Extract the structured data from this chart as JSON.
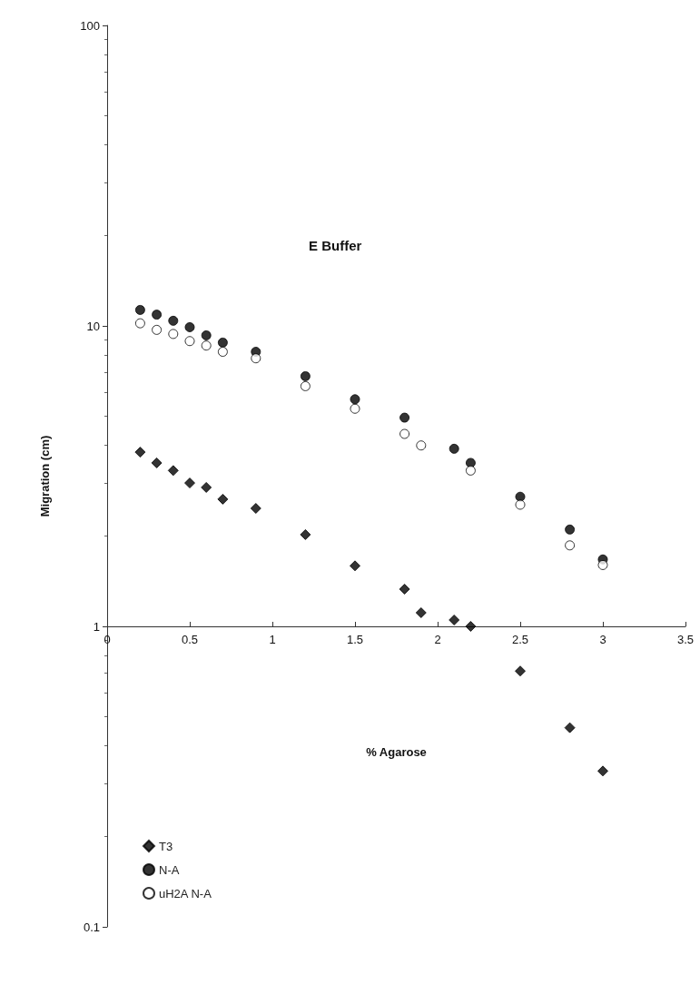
{
  "chart_data": {
    "type": "scatter",
    "title": "E Buffer",
    "xlabel": "% Agarose",
    "ylabel": "Migration (cm)",
    "log": "y",
    "grid": false,
    "legend": "bottom left",
    "xlim": [
      0,
      3.5
    ],
    "xticks": [
      0,
      0.5,
      1,
      1.5,
      2,
      2.5,
      3,
      3.5
    ],
    "ylim": [
      0.1,
      100
    ],
    "yticks": [
      0.1,
      1,
      10,
      100
    ],
    "series": [
      {
        "name": "T3",
        "color": "#000000",
        "marker": "diamond",
        "x": [
          0.2,
          0.3,
          0.4,
          0.5,
          0.6,
          0.7,
          0.9,
          1.2,
          1.5,
          1.8,
          1.9,
          2.1,
          2.2,
          2.5,
          2.8,
          3.0
        ],
        "values": [
          3.8,
          3.5,
          3.3,
          3.0,
          2.9,
          2.65,
          2.47,
          2.02,
          1.59,
          1.33,
          1.11,
          1.05,
          1.0,
          0.71,
          0.46,
          0.33
        ]
      },
      {
        "name": "N-A",
        "color": "#000000",
        "marker": "circle",
        "x": [
          0.2,
          0.3,
          0.4,
          0.5,
          0.6,
          0.7,
          0.9,
          1.2,
          1.5,
          1.8,
          2.1,
          2.2,
          2.5,
          2.8,
          3.0
        ],
        "values": [
          11.3,
          10.9,
          10.4,
          9.9,
          9.3,
          8.8,
          8.2,
          6.8,
          5.7,
          4.95,
          3.9,
          3.5,
          2.7,
          2.1,
          1.67
        ]
      },
      {
        "name": "uH2A N-A",
        "color": "#ffffff",
        "marker": "circle",
        "x": [
          0.2,
          0.3,
          0.4,
          0.5,
          0.6,
          0.7,
          0.9,
          1.2,
          1.5,
          1.8,
          1.9,
          2.2,
          2.5,
          2.8,
          3.0
        ],
        "values": [
          10.2,
          9.7,
          9.4,
          8.9,
          8.6,
          8.2,
          7.8,
          6.3,
          5.3,
          4.37,
          4.0,
          3.3,
          2.54,
          1.86,
          1.6
        ]
      }
    ]
  }
}
